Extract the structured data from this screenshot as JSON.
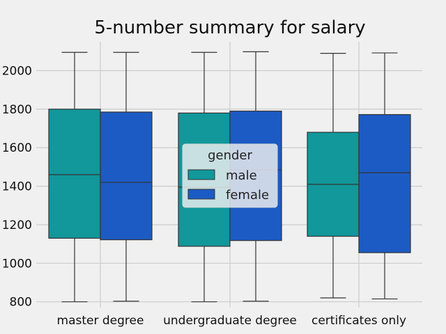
{
  "chart_data": {
    "type": "box",
    "title": "5-number summary for salary",
    "xlabel": "",
    "ylabel": "",
    "categories": [
      "master degree",
      "undergraduate degree",
      "certificates only"
    ],
    "ylim": [
      770,
      2150
    ],
    "yticks": [
      "800",
      "1000",
      "1200",
      "1400",
      "1600",
      "1800",
      "2000"
    ],
    "ytick_values": [
      800,
      1000,
      1200,
      1400,
      1600,
      1800,
      2000
    ],
    "legend": {
      "title": "gender",
      "placement": "center"
    },
    "grid": true,
    "series": [
      {
        "name": "male",
        "color": "#12979a",
        "boxes": [
          {
            "min": 800,
            "q1": 1130,
            "median": 1460,
            "q3": 1800,
            "max": 2095
          },
          {
            "min": 800,
            "q1": 1088,
            "median": 1395,
            "q3": 1780,
            "max": 2095
          },
          {
            "min": 820,
            "q1": 1140,
            "median": 1410,
            "q3": 1680,
            "max": 2090
          }
        ]
      },
      {
        "name": "female",
        "color": "#1c5bc4",
        "boxes": [
          {
            "min": 803,
            "q1": 1122,
            "median": 1420,
            "q3": 1785,
            "max": 2095
          },
          {
            "min": 803,
            "q1": 1118,
            "median": 1485,
            "q3": 1790,
            "max": 2098
          },
          {
            "min": 815,
            "q1": 1055,
            "median": 1470,
            "q3": 1772,
            "max": 2092
          }
        ]
      }
    ]
  }
}
